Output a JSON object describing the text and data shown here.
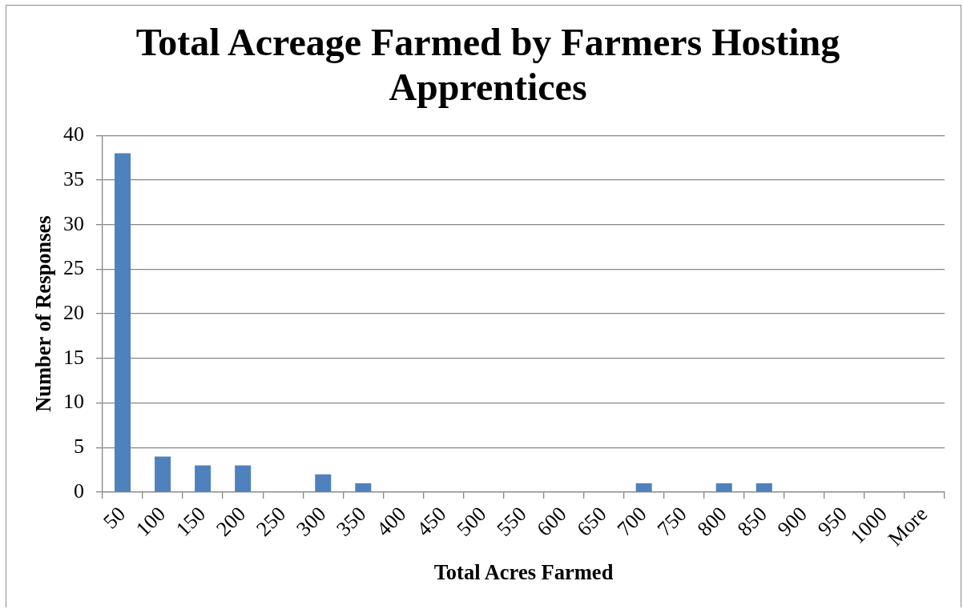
{
  "chart_data": {
    "type": "bar",
    "title": "Total Acreage Farmed by Farmers Hosting Apprentices",
    "xlabel": "Total Acres Farmed",
    "ylabel": "Number of Responses",
    "categories": [
      "50",
      "100",
      "150",
      "200",
      "250",
      "300",
      "350",
      "400",
      "450",
      "500",
      "550",
      "600",
      "650",
      "700",
      "750",
      "800",
      "850",
      "900",
      "950",
      "1000",
      "More"
    ],
    "values": [
      38,
      4,
      3,
      3,
      0,
      2,
      1,
      0,
      0,
      0,
      0,
      0,
      0,
      1,
      0,
      1,
      1,
      0,
      0,
      0,
      0
    ],
    "color": "#4f81bd",
    "ylim": [
      0,
      40
    ],
    "yticks": [
      0,
      5,
      10,
      15,
      20,
      25,
      30,
      35,
      40
    ],
    "grid": "y"
  }
}
